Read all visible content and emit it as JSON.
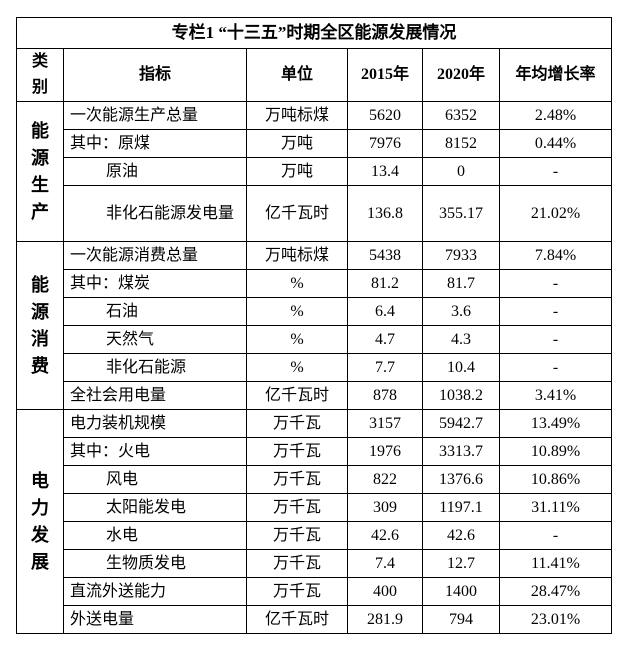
{
  "title": "专栏1 “十三五”时期全区能源发展情况",
  "headers": {
    "category": "类别",
    "indicator": "指标",
    "unit": "单位",
    "y2015": "2015年",
    "y2020": "2020年",
    "growth": "年均增长率"
  },
  "sections": [
    {
      "category": "能源生产",
      "rows": [
        {
          "indicator": "一次能源生产总量",
          "unit": "万吨标煤",
          "y2015": "5620",
          "y2020": "6352",
          "growth": "2.48%"
        },
        {
          "indicator": "其中：原煤",
          "unit": "万吨",
          "y2015": "7976",
          "y2020": "8152",
          "growth": "0.44%"
        },
        {
          "indicator": "原油",
          "unit": "万吨",
          "y2015": "13.4",
          "y2020": "0",
          "growth": "-"
        },
        {
          "indicator": "非化石能源发电量",
          "unit": "亿千瓦时",
          "y2015": "136.8",
          "y2020": "355.17",
          "growth": "21.02%"
        }
      ]
    },
    {
      "category": "能源消费",
      "rows": [
        {
          "indicator": "一次能源消费总量",
          "unit": "万吨标煤",
          "y2015": "5438",
          "y2020": "7933",
          "growth": "7.84%"
        },
        {
          "indicator": "其中：煤炭",
          "unit": "%",
          "y2015": "81.2",
          "y2020": "81.7",
          "growth": "-"
        },
        {
          "indicator": "石油",
          "unit": "%",
          "y2015": "6.4",
          "y2020": "3.6",
          "growth": "-"
        },
        {
          "indicator": "天然气",
          "unit": "%",
          "y2015": "4.7",
          "y2020": "4.3",
          "growth": "-"
        },
        {
          "indicator": "非化石能源",
          "unit": "%",
          "y2015": "7.7",
          "y2020": "10.4",
          "growth": "-"
        },
        {
          "indicator": "全社会用电量",
          "unit": "亿千瓦时",
          "y2015": "878",
          "y2020": "1038.2",
          "growth": "3.41%"
        }
      ]
    },
    {
      "category": "电力发展",
      "rows": [
        {
          "indicator": "电力装机规模",
          "unit": "万千瓦",
          "y2015": "3157",
          "y2020": "5942.7",
          "growth": "13.49%"
        },
        {
          "indicator": "其中：火电",
          "unit": "万千瓦",
          "y2015": "1976",
          "y2020": "3313.7",
          "growth": "10.89%"
        },
        {
          "indicator": "风电",
          "unit": "万千瓦",
          "y2015": "822",
          "y2020": "1376.6",
          "growth": "10.86%"
        },
        {
          "indicator": "太阳能发电",
          "unit": "万千瓦",
          "y2015": "309",
          "y2020": "1197.1",
          "growth": "31.11%"
        },
        {
          "indicator": "水电",
          "unit": "万千瓦",
          "y2015": "42.6",
          "y2020": "42.6",
          "growth": "-"
        },
        {
          "indicator": "生物质发电",
          "unit": "万千瓦",
          "y2015": "7.4",
          "y2020": "12.7",
          "growth": "11.41%"
        },
        {
          "indicator": "直流外送能力",
          "unit": "万千瓦",
          "y2015": "400",
          "y2020": "1400",
          "growth": "28.47%"
        },
        {
          "indicator": "外送电量",
          "unit": "亿千瓦时",
          "y2015": "281.9",
          "y2020": "794",
          "growth": "23.01%"
        }
      ]
    }
  ]
}
